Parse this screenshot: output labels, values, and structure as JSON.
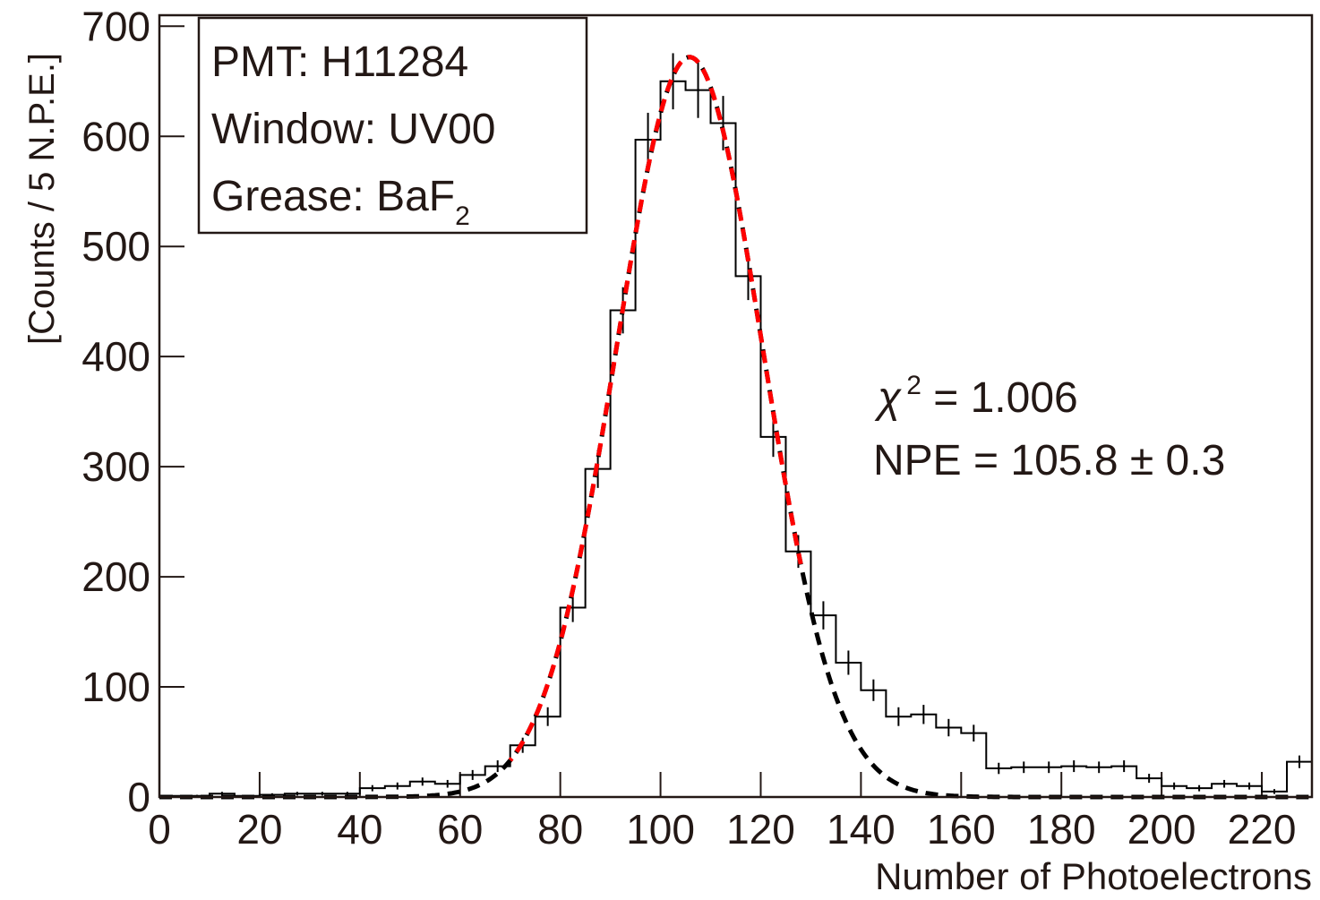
{
  "chart_data": {
    "type": "histogram",
    "xlabel": "Number of Photoelectrons",
    "ylabel": "[Counts / 5 N.P.E.]",
    "bins": [
      0,
      5,
      10,
      15,
      20,
      25,
      30,
      35,
      40,
      45,
      50,
      55,
      60,
      65,
      70,
      75,
      80,
      85,
      90,
      95,
      100,
      105,
      110,
      115,
      120,
      125,
      130,
      135,
      140,
      145,
      150,
      155,
      160,
      165,
      170,
      175,
      180,
      185,
      190,
      195,
      200,
      205,
      210,
      215,
      220,
      225,
      230
    ],
    "values": [
      1,
      1,
      3,
      1,
      2,
      3,
      3,
      3,
      8,
      10,
      14,
      12,
      20,
      28,
      47,
      73,
      172,
      298,
      442,
      597,
      650,
      642,
      612,
      473,
      327,
      223,
      165,
      122,
      97,
      73,
      75,
      63,
      58,
      26,
      27,
      27,
      28,
      27,
      28,
      17,
      10,
      8,
      12,
      10,
      5,
      32
    ],
    "errors": [
      1,
      1,
      1.7,
      1,
      1.4,
      1.7,
      1.7,
      1.7,
      2.8,
      3.2,
      3.7,
      3.5,
      4.5,
      5.3,
      6.9,
      8.5,
      13.1,
      17.3,
      21,
      24.4,
      25.5,
      25.3,
      24.7,
      21.7,
      18.1,
      14.9,
      12.8,
      11,
      9.8,
      8.5,
      8.7,
      7.9,
      7.6,
      5.1,
      5.2,
      5.2,
      5.3,
      5.2,
      5.3,
      4.1,
      3.2,
      2.8,
      3.5,
      3.2,
      2.2,
      5.7
    ],
    "color": "#000000",
    "curves": [
      {
        "color": "#000000",
        "amplitude": 672,
        "mean": 105.8,
        "sigma": 14.6,
        "range": [
          0,
          230
        ]
      },
      {
        "color": "#ff0000",
        "amplitude": 672,
        "mean": 105.8,
        "sigma": 14.6,
        "range": [
          70,
          128
        ]
      }
    ],
    "xlim": [
      0,
      230
    ],
    "ylim": [
      0,
      710
    ],
    "xticks": [
      0,
      20,
      40,
      60,
      80,
      100,
      120,
      140,
      160,
      180,
      200,
      220
    ],
    "yticks": [
      0,
      100,
      200,
      300,
      400,
      500,
      600,
      700
    ],
    "info_box": [
      "PMT: H11284",
      "Window: UV00",
      {
        "text": "Grease: BaF",
        "subscript": "2"
      }
    ],
    "fit_text": {
      "chi_symbol": "χ",
      "chi_superscript": "2",
      "chi_value": " = 1.006",
      "npe": "NPE = 105.8 ± 0.3"
    }
  }
}
